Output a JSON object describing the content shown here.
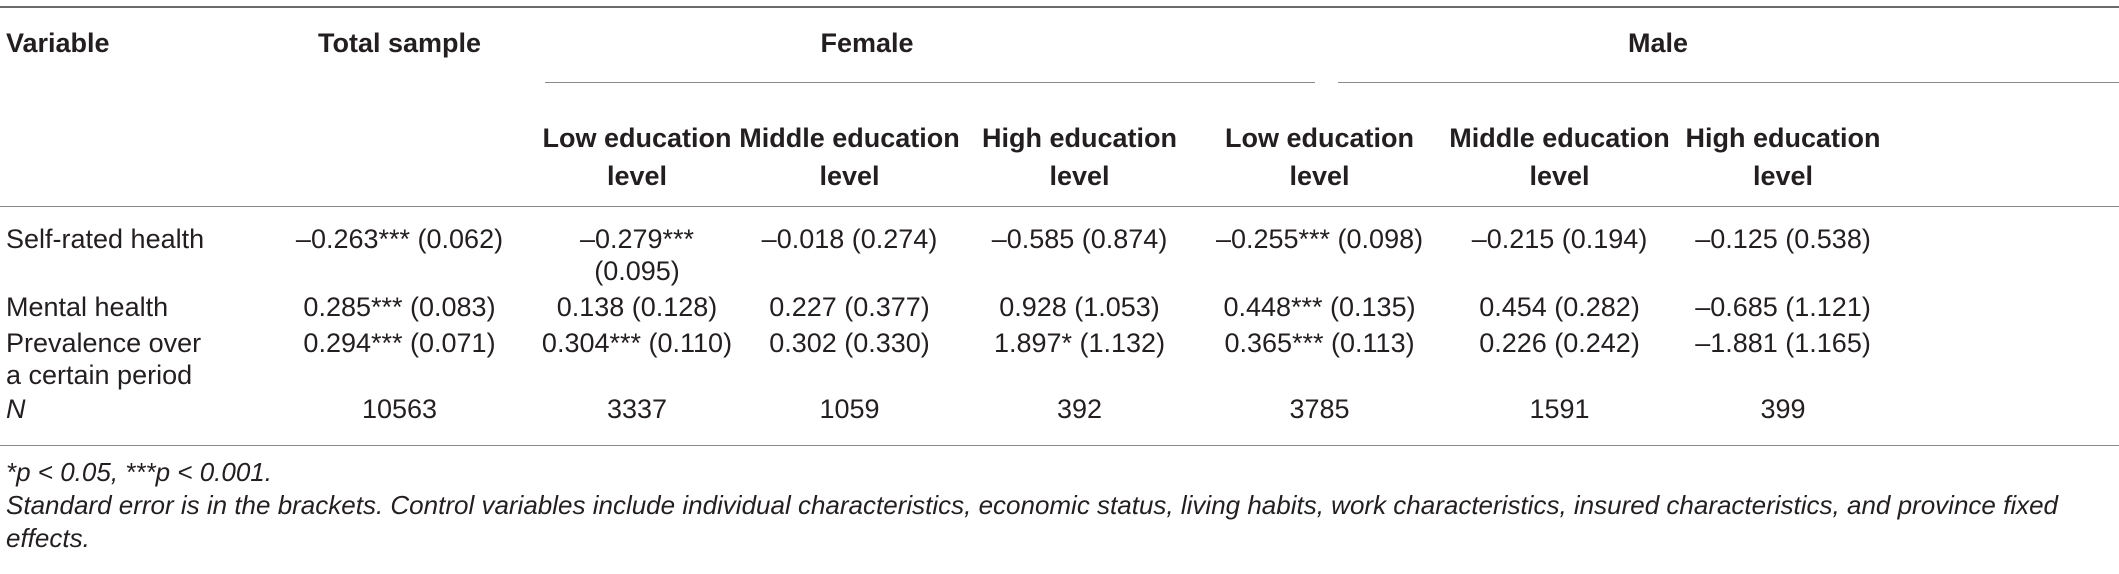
{
  "table": {
    "header": {
      "variable": "Variable",
      "total": "Total sample",
      "female": "Female",
      "male": "Male",
      "subcols": [
        "Low education level",
        "Middle education level",
        "High education level",
        "Low education level",
        "Middle education level",
        "High education level"
      ]
    },
    "rows": [
      {
        "label": "Self-rated health",
        "cells": [
          "–0.263*** (0.062)",
          "–0.279*** (0.095)",
          "–0.018 (0.274)",
          "–0.585 (0.874)",
          "–0.255*** (0.098)",
          "–0.215 (0.194)",
          "–0.125 (0.538)"
        ]
      },
      {
        "label": "Mental health",
        "cells": [
          "0.285*** (0.083)",
          "0.138 (0.128)",
          "0.227 (0.377)",
          "0.928 (1.053)",
          "0.448*** (0.135)",
          "0.454 (0.282)",
          "–0.685 (1.121)"
        ]
      },
      {
        "label": "Prevalence over a certain period",
        "cells": [
          "0.294*** (0.071)",
          "0.304*** (0.110)",
          "0.302 (0.330)",
          "1.897* (1.132)",
          "0.365*** (0.113)",
          "0.226 (0.242)",
          "–1.881 (1.165)"
        ]
      },
      {
        "label": "N",
        "cells": [
          "10563",
          "3337",
          "1059",
          "392",
          "3785",
          "1591",
          "399"
        ]
      }
    ]
  },
  "notes": {
    "significance": "*p < 0.05, ***p < 0.001.",
    "explanation": "Standard error is in the brackets. Control variables include individual characteristics, economic status, living habits, work characteristics, insured characteristics, and province fixed effects."
  }
}
